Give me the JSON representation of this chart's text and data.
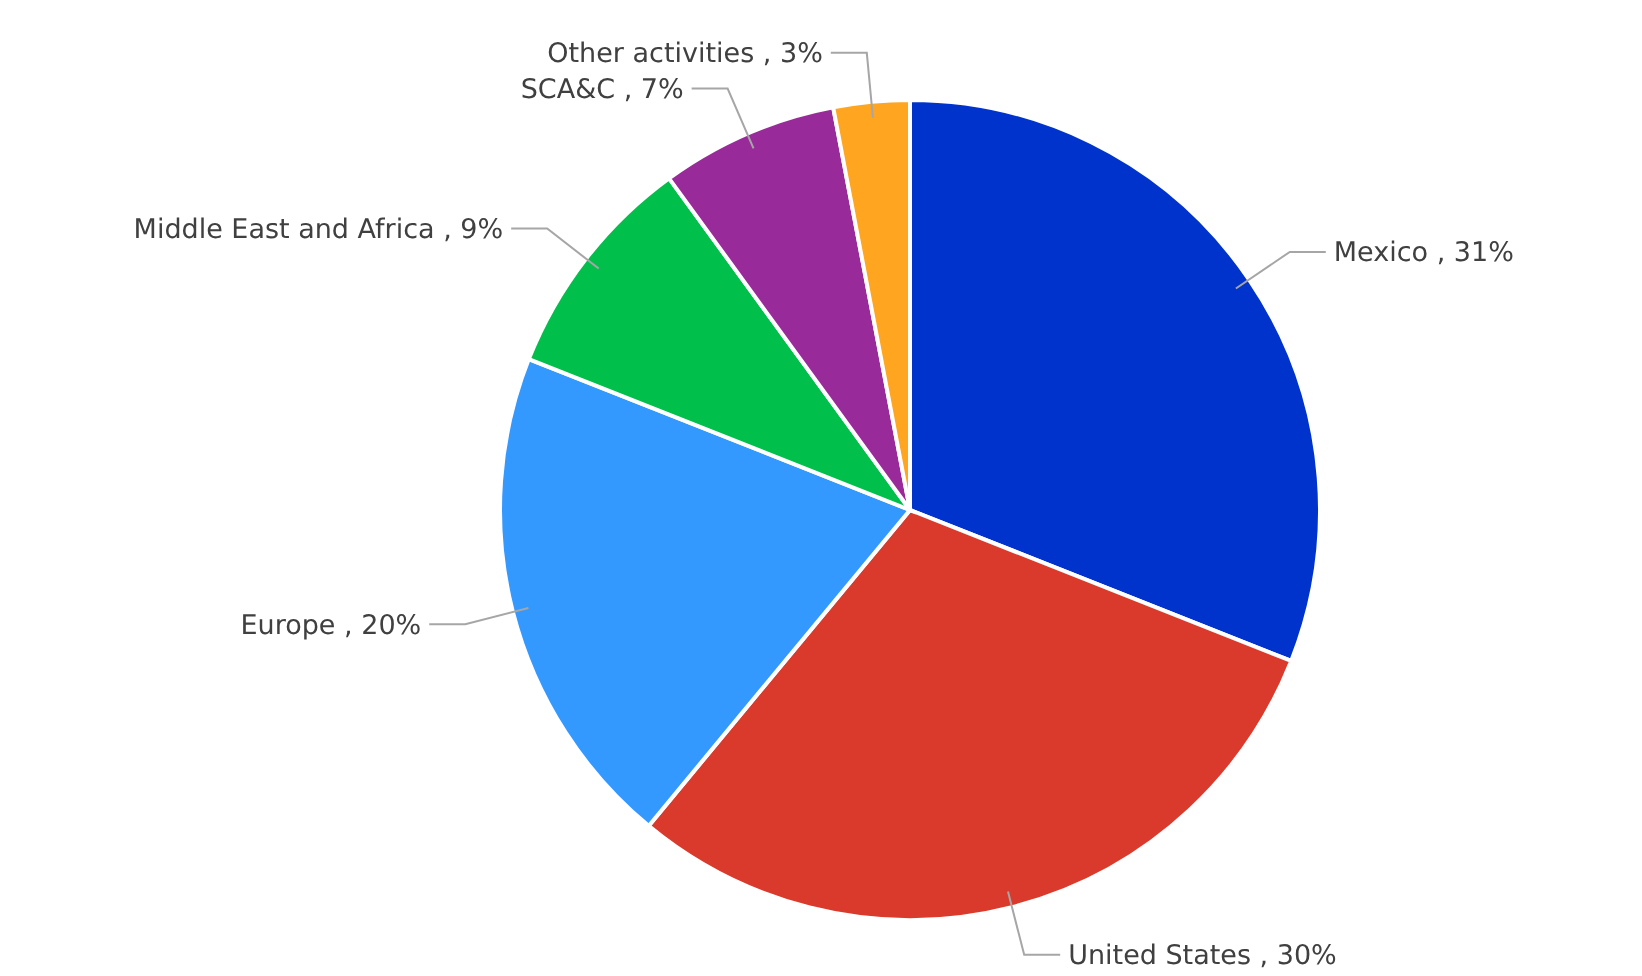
{
  "chart_data": {
    "type": "pie",
    "categories": [
      "Mexico",
      "United States",
      "Europe",
      "Middle East and Africa",
      "SCA&C",
      "Other activities"
    ],
    "values": [
      31,
      30,
      20,
      9,
      7,
      3
    ],
    "value_labels": [
      "31%",
      "30%",
      "20%",
      "9%",
      "7%",
      "3%"
    ],
    "colors": [
      "#0033cc",
      "#d93a2b",
      "#3399ff",
      "#00c04b",
      "#992a99",
      "#ffa51f"
    ],
    "legend": false
  }
}
